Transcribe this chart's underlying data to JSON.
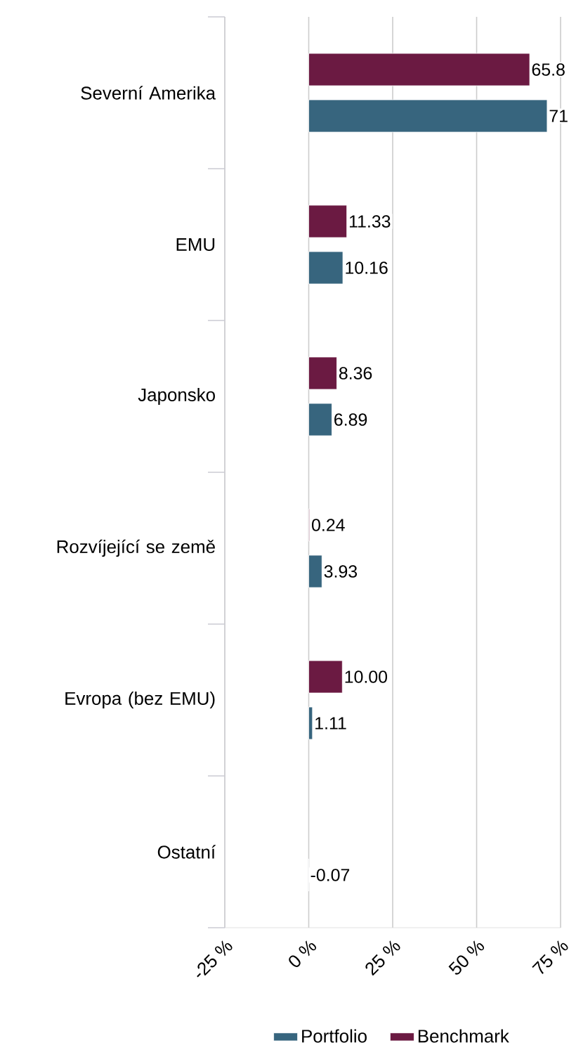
{
  "chart_data": {
    "type": "bar",
    "orientation": "horizontal",
    "categories": [
      "Severní Amerika",
      "EMU",
      "Japonsko",
      "Rozvíjející se země",
      "Evropa (bez EMU)",
      "Ostatní"
    ],
    "series": [
      {
        "name": "Portfolio",
        "color": "#37657e",
        "values": [
          71,
          10.16,
          6.89,
          3.93,
          1.11,
          -0.07
        ],
        "value_labels": [
          "71",
          "10.16",
          "6.89",
          "3.93",
          "1.11",
          "-0.07"
        ]
      },
      {
        "name": "Benchmark",
        "color": "#6b1a42",
        "values": [
          65.8,
          11.33,
          8.36,
          0.24,
          10.0,
          null
        ],
        "value_labels": [
          "65.8",
          "11.33",
          "8.36",
          "0.24",
          "10.00",
          null
        ]
      }
    ],
    "xlim": [
      -25,
      75
    ],
    "xticks": [
      {
        "value": -25,
        "label": "-25 %"
      },
      {
        "value": 0,
        "label": "0 %"
      },
      {
        "value": 25,
        "label": "25 %"
      },
      {
        "value": 50,
        "label": "50 %"
      },
      {
        "value": 75,
        "label": "75 %"
      }
    ],
    "grid": "x",
    "legend": "bottom"
  }
}
